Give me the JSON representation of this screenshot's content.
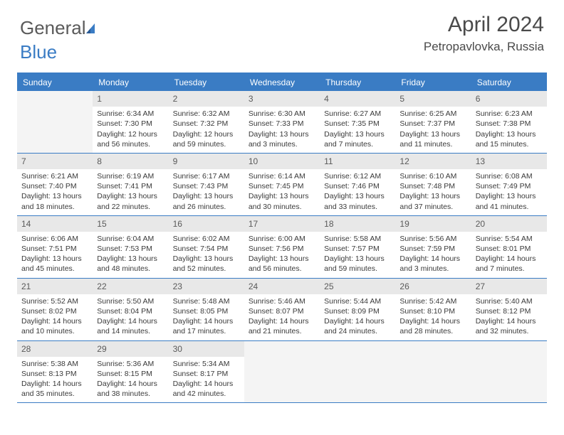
{
  "brand": {
    "part1": "General",
    "part2": "Blue"
  },
  "title": "April 2024",
  "subtitle": "Petropavlovka, Russia",
  "colors": {
    "accent": "#3a7cc4",
    "header_bg": "#3a7cc4",
    "header_text": "#ffffff",
    "daynum_bg": "#e8e8e8",
    "text": "#3a3a3a",
    "blank_bg": "#f4f4f4"
  },
  "day_headers": [
    "Sunday",
    "Monday",
    "Tuesday",
    "Wednesday",
    "Thursday",
    "Friday",
    "Saturday"
  ],
  "weeks": [
    [
      {
        "n": "",
        "blank": true
      },
      {
        "n": "1",
        "sunrise": "6:34 AM",
        "sunset": "7:30 PM",
        "daylight": "12 hours and 56 minutes."
      },
      {
        "n": "2",
        "sunrise": "6:32 AM",
        "sunset": "7:32 PM",
        "daylight": "12 hours and 59 minutes."
      },
      {
        "n": "3",
        "sunrise": "6:30 AM",
        "sunset": "7:33 PM",
        "daylight": "13 hours and 3 minutes."
      },
      {
        "n": "4",
        "sunrise": "6:27 AM",
        "sunset": "7:35 PM",
        "daylight": "13 hours and 7 minutes."
      },
      {
        "n": "5",
        "sunrise": "6:25 AM",
        "sunset": "7:37 PM",
        "daylight": "13 hours and 11 minutes."
      },
      {
        "n": "6",
        "sunrise": "6:23 AM",
        "sunset": "7:38 PM",
        "daylight": "13 hours and 15 minutes."
      }
    ],
    [
      {
        "n": "7",
        "sunrise": "6:21 AM",
        "sunset": "7:40 PM",
        "daylight": "13 hours and 18 minutes."
      },
      {
        "n": "8",
        "sunrise": "6:19 AM",
        "sunset": "7:41 PM",
        "daylight": "13 hours and 22 minutes."
      },
      {
        "n": "9",
        "sunrise": "6:17 AM",
        "sunset": "7:43 PM",
        "daylight": "13 hours and 26 minutes."
      },
      {
        "n": "10",
        "sunrise": "6:14 AM",
        "sunset": "7:45 PM",
        "daylight": "13 hours and 30 minutes."
      },
      {
        "n": "11",
        "sunrise": "6:12 AM",
        "sunset": "7:46 PM",
        "daylight": "13 hours and 33 minutes."
      },
      {
        "n": "12",
        "sunrise": "6:10 AM",
        "sunset": "7:48 PM",
        "daylight": "13 hours and 37 minutes."
      },
      {
        "n": "13",
        "sunrise": "6:08 AM",
        "sunset": "7:49 PM",
        "daylight": "13 hours and 41 minutes."
      }
    ],
    [
      {
        "n": "14",
        "sunrise": "6:06 AM",
        "sunset": "7:51 PM",
        "daylight": "13 hours and 45 minutes."
      },
      {
        "n": "15",
        "sunrise": "6:04 AM",
        "sunset": "7:53 PM",
        "daylight": "13 hours and 48 minutes."
      },
      {
        "n": "16",
        "sunrise": "6:02 AM",
        "sunset": "7:54 PM",
        "daylight": "13 hours and 52 minutes."
      },
      {
        "n": "17",
        "sunrise": "6:00 AM",
        "sunset": "7:56 PM",
        "daylight": "13 hours and 56 minutes."
      },
      {
        "n": "18",
        "sunrise": "5:58 AM",
        "sunset": "7:57 PM",
        "daylight": "13 hours and 59 minutes."
      },
      {
        "n": "19",
        "sunrise": "5:56 AM",
        "sunset": "7:59 PM",
        "daylight": "14 hours and 3 minutes."
      },
      {
        "n": "20",
        "sunrise": "5:54 AM",
        "sunset": "8:01 PM",
        "daylight": "14 hours and 7 minutes."
      }
    ],
    [
      {
        "n": "21",
        "sunrise": "5:52 AM",
        "sunset": "8:02 PM",
        "daylight": "14 hours and 10 minutes."
      },
      {
        "n": "22",
        "sunrise": "5:50 AM",
        "sunset": "8:04 PM",
        "daylight": "14 hours and 14 minutes."
      },
      {
        "n": "23",
        "sunrise": "5:48 AM",
        "sunset": "8:05 PM",
        "daylight": "14 hours and 17 minutes."
      },
      {
        "n": "24",
        "sunrise": "5:46 AM",
        "sunset": "8:07 PM",
        "daylight": "14 hours and 21 minutes."
      },
      {
        "n": "25",
        "sunrise": "5:44 AM",
        "sunset": "8:09 PM",
        "daylight": "14 hours and 24 minutes."
      },
      {
        "n": "26",
        "sunrise": "5:42 AM",
        "sunset": "8:10 PM",
        "daylight": "14 hours and 28 minutes."
      },
      {
        "n": "27",
        "sunrise": "5:40 AM",
        "sunset": "8:12 PM",
        "daylight": "14 hours and 32 minutes."
      }
    ],
    [
      {
        "n": "28",
        "sunrise": "5:38 AM",
        "sunset": "8:13 PM",
        "daylight": "14 hours and 35 minutes."
      },
      {
        "n": "29",
        "sunrise": "5:36 AM",
        "sunset": "8:15 PM",
        "daylight": "14 hours and 38 minutes."
      },
      {
        "n": "30",
        "sunrise": "5:34 AM",
        "sunset": "8:17 PM",
        "daylight": "14 hours and 42 minutes."
      },
      {
        "n": "",
        "blank": true
      },
      {
        "n": "",
        "blank": true
      },
      {
        "n": "",
        "blank": true
      },
      {
        "n": "",
        "blank": true
      }
    ]
  ],
  "labels": {
    "sunrise": "Sunrise:",
    "sunset": "Sunset:",
    "daylight": "Daylight:"
  }
}
